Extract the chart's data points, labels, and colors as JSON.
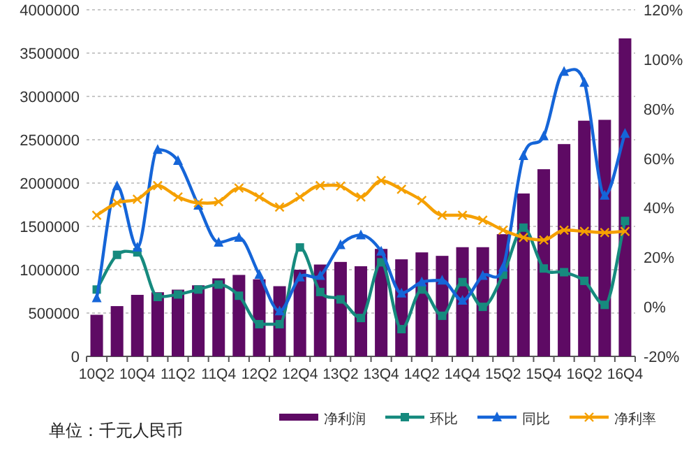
{
  "chart_data": {
    "type": "bar",
    "categories": [
      "10Q2",
      null,
      "10Q4",
      null,
      "11Q2",
      null,
      "11Q4",
      null,
      "12Q2",
      null,
      "12Q4",
      null,
      "13Q2",
      null,
      "13Q4",
      null,
      "14Q2",
      null,
      "14Q4",
      null,
      "15Q2",
      null,
      "15Q4",
      null,
      "16Q2",
      null,
      "16Q4"
    ],
    "series": [
      {
        "name": "净利润",
        "color": "#5e0a64",
        "values": [
          480000,
          580000,
          710000,
          740000,
          770000,
          820000,
          900000,
          940000,
          890000,
          810000,
          1000000,
          1060000,
          1090000,
          1040000,
          1240000,
          1120000,
          1200000,
          1160000,
          1260000,
          1260000,
          1410000,
          1880000,
          2160000,
          2450000,
          2720000,
          2730000,
          3670000
        ]
      },
      {
        "name": "环比",
        "type": "line",
        "axis": "y2",
        "marker": "square",
        "color": "#168a7e",
        "values": [
          7,
          21,
          22,
          4,
          5,
          7,
          9,
          4.5,
          -7,
          -7,
          24,
          6,
          3,
          -4.5,
          18,
          -9,
          7,
          -3.6,
          10,
          0,
          13,
          32,
          15.5,
          14,
          10.5,
          0.8,
          34.7
        ]
      },
      {
        "name": "同比",
        "type": "line",
        "axis": "y2",
        "marker": "triangle",
        "color": "#1565d8",
        "values": [
          3.6,
          48.8,
          24,
          63.5,
          59,
          41,
          26,
          28,
          13,
          -1.7,
          12,
          12.6,
          25,
          29,
          22.4,
          5.5,
          10,
          10.7,
          2.6,
          12.6,
          16,
          61,
          69,
          95,
          90.6,
          45,
          70
        ]
      },
      {
        "name": "净利率",
        "type": "line",
        "axis": "y2",
        "marker": "cross",
        "color": "#f5a000",
        "values": [
          37,
          42,
          43.5,
          49,
          44.4,
          42,
          42.5,
          48,
          44.4,
          40.3,
          44.4,
          49,
          48.8,
          44.4,
          51,
          47.5,
          43,
          37,
          37,
          35,
          31,
          28,
          27,
          31,
          30.5,
          30,
          30.5
        ]
      }
    ],
    "ylim": [
      0,
      4000000
    ],
    "yticks": [
      0,
      500000,
      1000000,
      1500000,
      2000000,
      2500000,
      3000000,
      3500000,
      4000000
    ],
    "y2lim": [
      -20,
      120
    ],
    "y2ticks": [
      {
        "value": -20,
        "label": "-20%"
      },
      {
        "value": 0,
        "label": "0%"
      },
      {
        "value": 20,
        "label": "20%"
      },
      {
        "value": 40,
        "label": "40%"
      },
      {
        "value": 60,
        "label": "60%"
      },
      {
        "value": 80,
        "label": "80%"
      },
      {
        "value": 100,
        "label": "100%"
      },
      {
        "value": 120,
        "label": "120%"
      }
    ],
    "grid": "y",
    "legend": "bottom",
    "annotations": [
      "单位：千元人民币"
    ]
  }
}
